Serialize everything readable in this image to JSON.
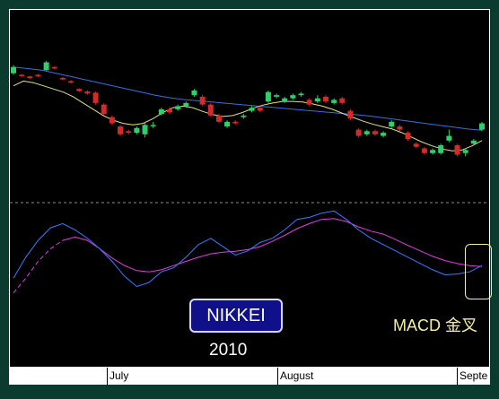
{
  "chart_data": {
    "type": "candlestick",
    "title": "NIKKEI",
    "year": "2010",
    "annotation": "MACD 金叉",
    "x_tick_labels": [
      "July",
      "August",
      "Septe"
    ],
    "colors": {
      "up_candle": "#2fcf6a",
      "down_candle": "#d42a2a",
      "ma_short": "#e6e080",
      "ma_long": "#3b6fe0",
      "macd_line": "#3b7bff",
      "signal_line": "#e040e0",
      "separator": "#8a8a8a",
      "annotation": "#f4f0a0"
    },
    "candles": [
      {
        "o": 0.6,
        "c": 0.8,
        "h": 0.86,
        "l": 0.55
      },
      {
        "o": 0.55,
        "c": 0.52,
        "h": 0.58,
        "l": 0.48
      },
      {
        "o": 0.5,
        "c": 0.45,
        "h": 0.52,
        "l": 0.42
      },
      {
        "o": 0.55,
        "c": 0.5,
        "h": 0.58,
        "l": 0.48
      },
      {
        "o": 0.7,
        "c": 0.95,
        "h": 1.0,
        "l": 0.68
      },
      {
        "o": 0.8,
        "c": 0.75,
        "h": 0.83,
        "l": 0.72
      },
      {
        "o": 0.45,
        "c": 0.4,
        "h": 0.48,
        "l": 0.37
      },
      {
        "o": 0.35,
        "c": 0.3,
        "h": 0.38,
        "l": 0.27
      },
      {
        "o": 0.1,
        "c": 0.03,
        "h": 0.12,
        "l": 0.0
      },
      {
        "o": 0.02,
        "c": -0.05,
        "h": 0.05,
        "l": -0.08
      },
      {
        "o": -0.02,
        "c": -0.35,
        "h": 0.02,
        "l": -0.4
      },
      {
        "o": -0.4,
        "c": -0.7,
        "h": -0.35,
        "l": -0.75
      },
      {
        "o": -0.8,
        "c": -1.0,
        "h": -0.75,
        "l": -1.05
      },
      {
        "o": -1.1,
        "c": -1.35,
        "h": -1.05,
        "l": -1.4
      },
      {
        "o": -1.25,
        "c": -1.3,
        "h": -1.2,
        "l": -1.35
      },
      {
        "o": -1.3,
        "c": -1.15,
        "h": -1.1,
        "l": -1.35
      },
      {
        "o": -1.35,
        "c": -1.05,
        "h": -0.95,
        "l": -1.45
      },
      {
        "o": -1.05,
        "c": -1.05,
        "h": -0.95,
        "l": -1.15
      },
      {
        "o": -0.7,
        "c": -0.55,
        "h": -0.5,
        "l": -0.75
      },
      {
        "o": -0.55,
        "c": -0.65,
        "h": -0.48,
        "l": -0.7
      },
      {
        "o": -0.55,
        "c": -0.45,
        "h": -0.4,
        "l": -0.6
      },
      {
        "o": -0.45,
        "c": -0.35,
        "h": -0.3,
        "l": -0.5
      },
      {
        "o": -0.1,
        "c": 0.05,
        "h": 0.1,
        "l": -0.15
      },
      {
        "o": -0.15,
        "c": -0.4,
        "h": -0.1,
        "l": -0.45
      },
      {
        "o": -0.4,
        "c": -0.75,
        "h": -0.35,
        "l": -0.8
      },
      {
        "o": -0.75,
        "c": -0.95,
        "h": -0.7,
        "l": -1.0
      },
      {
        "o": -1.1,
        "c": -0.95,
        "h": -0.9,
        "l": -1.15
      },
      {
        "o": -0.95,
        "c": -1.0,
        "h": -0.9,
        "l": -1.05
      },
      {
        "o": -0.8,
        "c": -0.75,
        "h": -0.7,
        "l": -0.85
      },
      {
        "o": -0.6,
        "c": -0.5,
        "h": -0.45,
        "l": -0.65
      },
      {
        "o": -0.5,
        "c": -0.6,
        "h": -0.45,
        "l": -0.65
      },
      {
        "o": -0.3,
        "c": 0.0,
        "h": 0.05,
        "l": -0.35
      },
      {
        "o": -0.15,
        "c": -0.1,
        "h": -0.05,
        "l": -0.2
      },
      {
        "o": -0.3,
        "c": -0.2,
        "h": -0.15,
        "l": -0.35
      },
      {
        "o": -0.2,
        "c": -0.1,
        "h": -0.05,
        "l": -0.25
      },
      {
        "o": -0.1,
        "c": -0.05,
        "h": 0.0,
        "l": -0.15
      },
      {
        "o": -0.25,
        "c": -0.4,
        "h": -0.2,
        "l": -0.45
      },
      {
        "o": -0.3,
        "c": -0.2,
        "h": -0.1,
        "l": -0.35
      },
      {
        "o": -0.15,
        "c": -0.3,
        "h": -0.1,
        "l": -0.35
      },
      {
        "o": -0.35,
        "c": -0.25,
        "h": -0.2,
        "l": -0.4
      },
      {
        "o": -0.2,
        "c": -0.35,
        "h": -0.15,
        "l": -0.4
      },
      {
        "o": -0.6,
        "c": -0.85,
        "h": -0.55,
        "l": -0.9
      },
      {
        "o": -1.2,
        "c": -1.4,
        "h": -1.15,
        "l": -1.45
      },
      {
        "o": -1.35,
        "c": -1.25,
        "h": -1.2,
        "l": -1.4
      },
      {
        "o": -1.25,
        "c": -1.35,
        "h": -1.2,
        "l": -1.4
      },
      {
        "o": -1.4,
        "c": -1.3,
        "h": -1.25,
        "l": -1.45
      },
      {
        "o": -1.1,
        "c": -0.95,
        "h": -0.9,
        "l": -1.15
      },
      {
        "o": -1.1,
        "c": -1.2,
        "h": -1.05,
        "l": -1.25
      },
      {
        "o": -1.3,
        "c": -1.5,
        "h": -1.25,
        "l": -1.55
      },
      {
        "o": -1.65,
        "c": -1.75,
        "h": -1.6,
        "l": -1.8
      },
      {
        "o": -1.8,
        "c": -1.95,
        "h": -1.75,
        "l": -2.0
      },
      {
        "o": -1.95,
        "c": -1.85,
        "h": -1.8,
        "l": -2.0
      },
      {
        "o": -1.95,
        "c": -1.7,
        "h": -1.65,
        "l": -2.0
      },
      {
        "o": -1.55,
        "c": -1.4,
        "h": -1.2,
        "l": -1.6
      },
      {
        "o": -1.7,
        "c": -2.0,
        "h": -1.65,
        "l": -2.05
      },
      {
        "o": -1.95,
        "c": -1.85,
        "h": -1.8,
        "l": -2.05
      },
      {
        "o": -1.65,
        "c": -1.55,
        "h": -1.5,
        "l": -1.7
      },
      {
        "o": -1.2,
        "c": -1.0,
        "h": -0.95,
        "l": -1.25
      }
    ],
    "ma_short": [
      0.2,
      0.35,
      0.3,
      0.2,
      0.1,
      0.0,
      -0.15,
      -0.35,
      -0.55,
      -0.75,
      -0.9,
      -1.0,
      -1.05,
      -1.0,
      -0.85,
      -0.65,
      -0.5,
      -0.45,
      -0.5,
      -0.62,
      -0.72,
      -0.78,
      -0.75,
      -0.65,
      -0.52,
      -0.42,
      -0.35,
      -0.3,
      -0.3,
      -0.32,
      -0.38,
      -0.45,
      -0.55,
      -0.68,
      -0.8,
      -0.92,
      -1.02,
      -1.1,
      -1.18,
      -1.3,
      -1.45,
      -1.6,
      -1.72,
      -1.82,
      -1.88,
      -1.85,
      -1.72,
      -1.55
    ],
    "ma_long": [
      0.8,
      0.75,
      0.7,
      0.6,
      0.5,
      0.4,
      0.3,
      0.2,
      0.1,
      0.0,
      -0.1,
      -0.18,
      -0.24,
      -0.28,
      -0.32,
      -0.36,
      -0.4,
      -0.44,
      -0.48,
      -0.52,
      -0.56,
      -0.6,
      -0.64,
      -0.68,
      -0.72,
      -0.76,
      -0.82,
      -0.88,
      -0.94,
      -1.0,
      -1.06,
      -1.12,
      -1.18,
      -1.22
    ],
    "macd": [
      -0.6,
      -0.1,
      0.3,
      0.6,
      0.7,
      0.55,
      0.35,
      0.1,
      -0.2,
      -0.55,
      -0.8,
      -0.7,
      -0.45,
      -0.35,
      -0.1,
      0.2,
      0.35,
      0.15,
      -0.05,
      0.05,
      0.25,
      0.35,
      0.55,
      0.8,
      0.85,
      0.95,
      1.0,
      0.8,
      0.55,
      0.35,
      0.2,
      0.05,
      -0.1,
      -0.25,
      -0.4,
      -0.52,
      -0.5,
      -0.45,
      -0.3
    ],
    "signal": [
      -0.95,
      -0.6,
      -0.2,
      0.1,
      0.3,
      0.38,
      0.3,
      0.1,
      -0.12,
      -0.3,
      -0.42,
      -0.45,
      -0.4,
      -0.3,
      -0.2,
      -0.1,
      -0.02,
      0.02,
      0.04,
      0.08,
      0.15,
      0.28,
      0.42,
      0.58,
      0.7,
      0.8,
      0.82,
      0.75,
      0.62,
      0.52,
      0.45,
      0.32,
      0.18,
      0.05,
      -0.08,
      -0.18,
      -0.25,
      -0.3,
      -0.32
    ]
  }
}
